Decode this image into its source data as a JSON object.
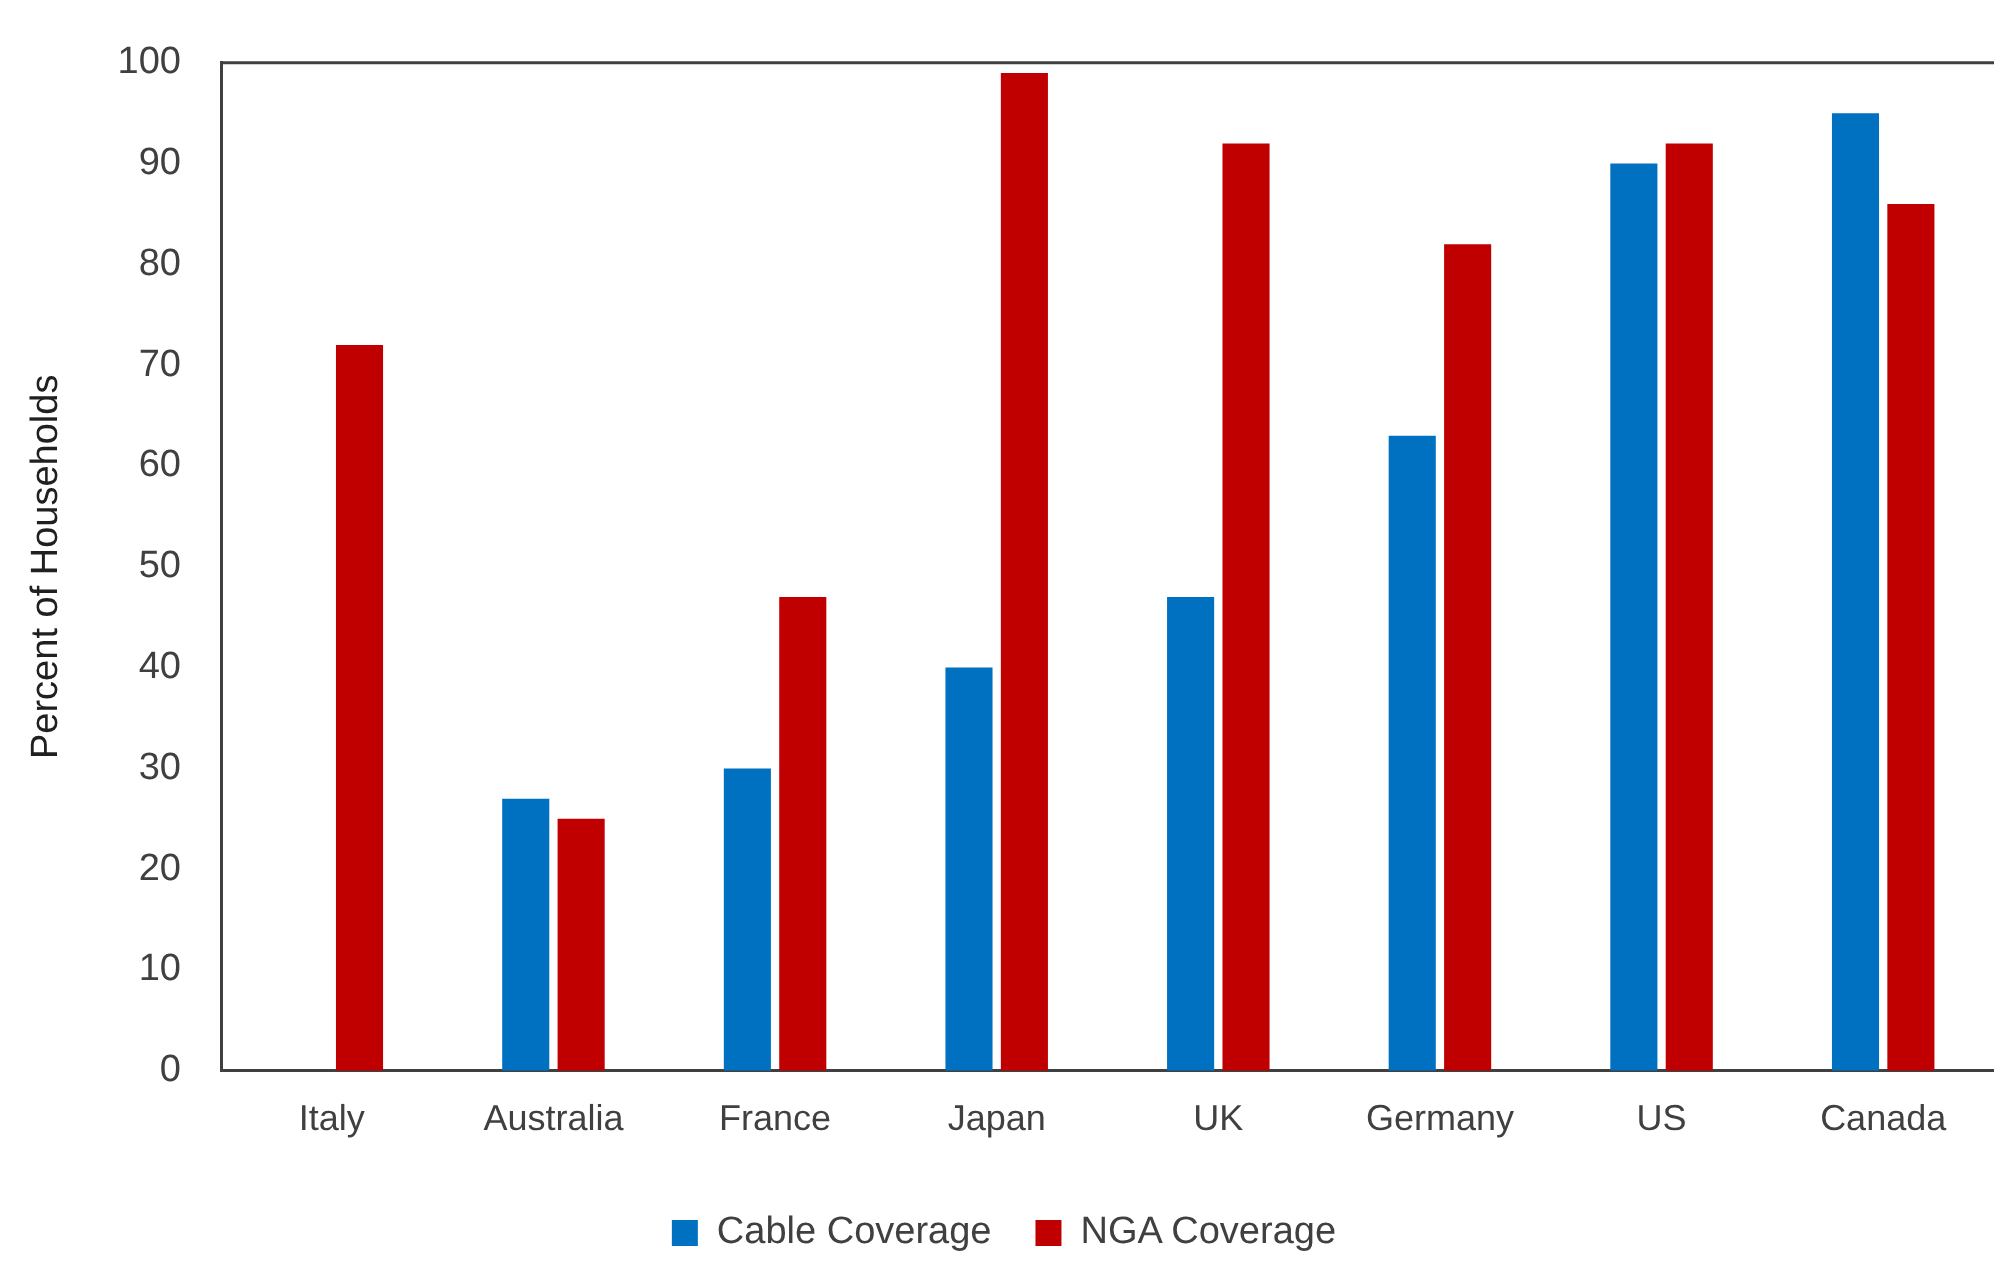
{
  "chart_data": {
    "type": "bar",
    "ylabel": "Percent of Households",
    "categories": [
      "Italy",
      "Australia",
      "France",
      "Japan",
      "UK",
      "Germany",
      "US",
      "Canada"
    ],
    "series": [
      {
        "name": "Cable Coverage",
        "color": "#0070c0",
        "values": [
          null,
          27,
          30,
          40,
          47,
          63,
          90,
          95
        ]
      },
      {
        "name": "NGA Coverage",
        "color": "#c00000",
        "values": [
          72,
          25,
          47,
          99,
          92,
          82,
          92,
          86
        ]
      }
    ],
    "ylim": [
      0,
      100
    ],
    "yticks": [
      0,
      10,
      20,
      30,
      40,
      50,
      60,
      70,
      80,
      90,
      100
    ],
    "grid": false,
    "legend": "bottom"
  }
}
